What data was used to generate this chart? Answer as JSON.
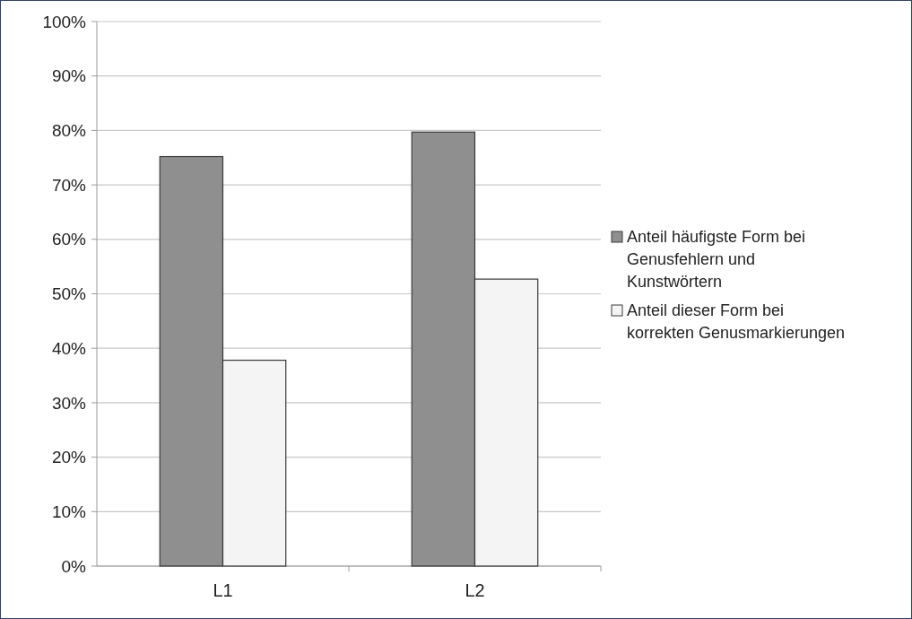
{
  "chart_data": {
    "type": "bar",
    "categories": [
      "L1",
      "L2"
    ],
    "series": [
      {
        "name": "Anteil häufigste Form bei Genusfehlern und Kunstwörtern",
        "color": "#8f8f8f",
        "values": [
          75.2,
          79.7
        ]
      },
      {
        "name": "Anteil dieser Form bei korrekten Genusmarkierungen",
        "color": "#f3f4f3",
        "values": [
          37.8,
          52.7
        ]
      }
    ],
    "ylim": [
      0,
      100
    ],
    "yticks": [
      {
        "value": 0,
        "label": "0%"
      },
      {
        "value": 10,
        "label": "10%"
      },
      {
        "value": 20,
        "label": "20%"
      },
      {
        "value": 30,
        "label": "30%"
      },
      {
        "value": 40,
        "label": "40%"
      },
      {
        "value": 50,
        "label": "50%"
      },
      {
        "value": 60,
        "label": "60%"
      },
      {
        "value": 70,
        "label": "70%"
      },
      {
        "value": 80,
        "label": "80%"
      },
      {
        "value": 90,
        "label": "90%"
      },
      {
        "value": 100,
        "label": "100%"
      }
    ],
    "grid": "y",
    "legend": "right"
  }
}
